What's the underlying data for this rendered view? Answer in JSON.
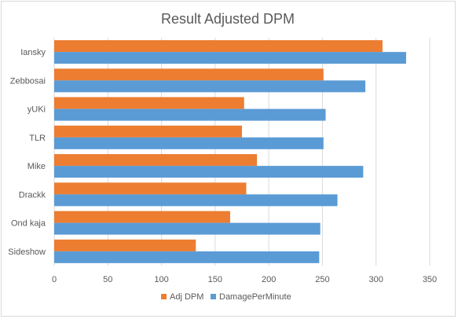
{
  "chart_data": {
    "type": "bar",
    "orientation": "horizontal",
    "title": "Result Adjusted DPM",
    "categories": [
      "Iansky",
      "Zebbosai",
      "yUKi",
      "TLR",
      "Mike",
      "Drackk",
      "Ond kaja",
      "Sideshow"
    ],
    "series": [
      {
        "name": "Adj DPM",
        "color": "#ED7D31",
        "values": [
          306,
          251,
          177,
          175,
          189,
          179,
          164,
          132
        ]
      },
      {
        "name": "DamagePerMinute",
        "color": "#5B9BD5",
        "values": [
          328,
          290,
          253,
          251,
          288,
          264,
          248,
          247
        ]
      }
    ],
    "xlim": [
      0,
      350
    ],
    "xticks": [
      0,
      50,
      100,
      150,
      200,
      250,
      300,
      350
    ],
    "grid": true,
    "legend": "bottom",
    "xlabel": "",
    "ylabel": ""
  }
}
